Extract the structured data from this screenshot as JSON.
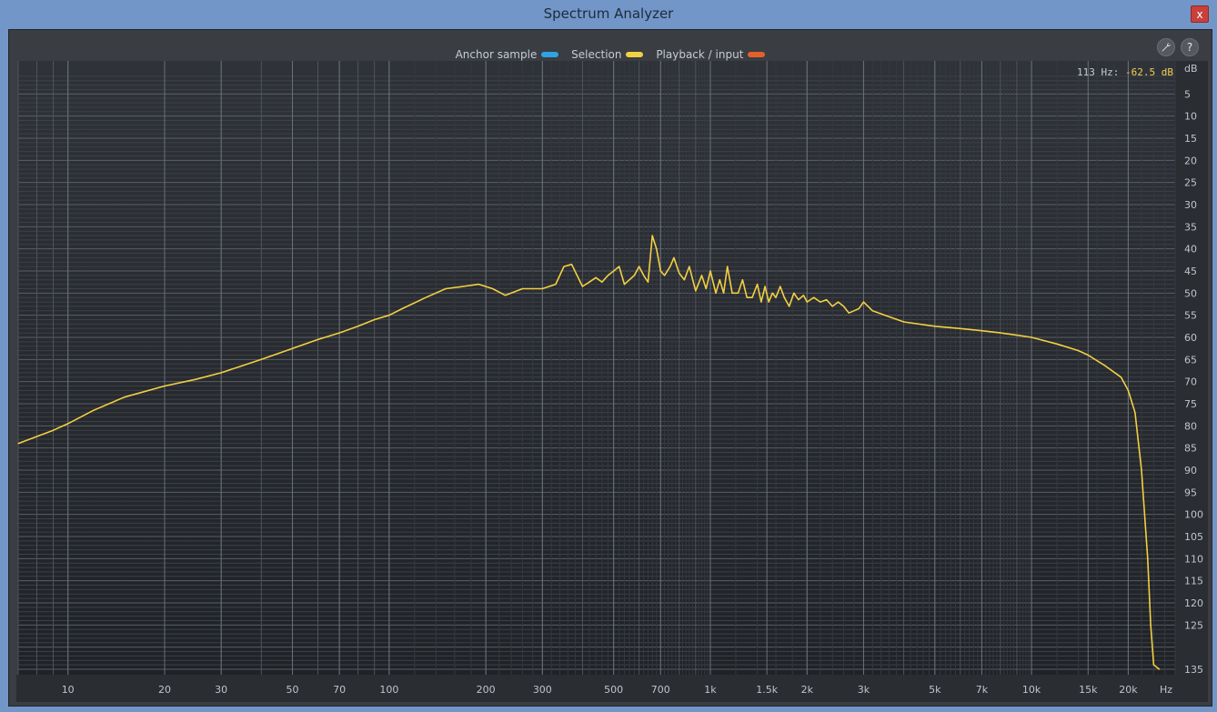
{
  "window": {
    "title": "Spectrum Analyzer",
    "close_label": "x"
  },
  "legend": [
    {
      "label": "Anchor sample",
      "color": "#2fa3e6"
    },
    {
      "label": "Selection",
      "color": "#f3cf42"
    },
    {
      "label": "Playback / input",
      "color": "#e4602a"
    }
  ],
  "toolbar": {
    "settings_icon": "wrench-icon",
    "help_label": "?"
  },
  "readout": {
    "freq": "113 Hz:",
    "value": "-62.5 dB"
  },
  "chart_data": {
    "type": "line",
    "title": "",
    "xlabel": "Hz",
    "ylabel": "dB",
    "xscale": "log",
    "xlim": [
      7,
      28000
    ],
    "ylim": [
      0,
      135
    ],
    "x_ticks": [
      {
        "v": 10,
        "label": "10"
      },
      {
        "v": 20,
        "label": "20"
      },
      {
        "v": 30,
        "label": "30"
      },
      {
        "v": 50,
        "label": "50"
      },
      {
        "v": 70,
        "label": "70"
      },
      {
        "v": 100,
        "label": "100"
      },
      {
        "v": 200,
        "label": "200"
      },
      {
        "v": 300,
        "label": "300"
      },
      {
        "v": 500,
        "label": "500"
      },
      {
        "v": 700,
        "label": "700"
      },
      {
        "v": 1000,
        "label": "1k"
      },
      {
        "v": 1500,
        "label": "1.5k"
      },
      {
        "v": 2000,
        "label": "2k"
      },
      {
        "v": 3000,
        "label": "3k"
      },
      {
        "v": 5000,
        "label": "5k"
      },
      {
        "v": 7000,
        "label": "7k"
      },
      {
        "v": 10000,
        "label": "10k"
      },
      {
        "v": 15000,
        "label": "15k"
      },
      {
        "v": 20000,
        "label": "20k"
      }
    ],
    "x_unit_label": "Hz",
    "y_unit_label": "dB",
    "y_ticks": [
      {
        "v": 5,
        "label": "5"
      },
      {
        "v": 10,
        "label": "10"
      },
      {
        "v": 15,
        "label": "15"
      },
      {
        "v": 20,
        "label": "20"
      },
      {
        "v": 25,
        "label": "25"
      },
      {
        "v": 30,
        "label": "30"
      },
      {
        "v": 35,
        "label": "35"
      },
      {
        "v": 40,
        "label": "40"
      },
      {
        "v": 45,
        "label": "45"
      },
      {
        "v": 50,
        "label": "50"
      },
      {
        "v": 55,
        "label": "55"
      },
      {
        "v": 60,
        "label": "60"
      },
      {
        "v": 65,
        "label": "65"
      },
      {
        "v": 70,
        "label": "70"
      },
      {
        "v": 75,
        "label": "75"
      },
      {
        "v": 80,
        "label": "80"
      },
      {
        "v": 85,
        "label": "85"
      },
      {
        "v": 90,
        "label": "90"
      },
      {
        "v": 95,
        "label": "95"
      },
      {
        "v": 100,
        "label": "100"
      },
      {
        "v": 105,
        "label": "105"
      },
      {
        "v": 110,
        "label": "110"
      },
      {
        "v": 115,
        "label": "115"
      },
      {
        "v": 120,
        "label": "120"
      },
      {
        "v": 125,
        "label": "125"
      },
      {
        "v": 135,
        "label": "135"
      }
    ],
    "series": [
      {
        "name": "Selection",
        "color": "#f3cf42",
        "points": [
          [
            7,
            84
          ],
          [
            9,
            81
          ],
          [
            10,
            79.5
          ],
          [
            12,
            76.5
          ],
          [
            15,
            73.5
          ],
          [
            20,
            71
          ],
          [
            25,
            69.5
          ],
          [
            30,
            68
          ],
          [
            40,
            65
          ],
          [
            50,
            62.5
          ],
          [
            60,
            60.5
          ],
          [
            70,
            59
          ],
          [
            80,
            57.5
          ],
          [
            90,
            56
          ],
          [
            100,
            55
          ],
          [
            110,
            53.5
          ],
          [
            130,
            51
          ],
          [
            150,
            49
          ],
          [
            170,
            48.5
          ],
          [
            190,
            48
          ],
          [
            210,
            49
          ],
          [
            230,
            50.5
          ],
          [
            260,
            49
          ],
          [
            280,
            49
          ],
          [
            300,
            49
          ],
          [
            330,
            48
          ],
          [
            350,
            44
          ],
          [
            370,
            43.5
          ],
          [
            400,
            48.5
          ],
          [
            420,
            47.5
          ],
          [
            440,
            46.5
          ],
          [
            460,
            47.5
          ],
          [
            480,
            46
          ],
          [
            500,
            45
          ],
          [
            520,
            44
          ],
          [
            540,
            48
          ],
          [
            560,
            47
          ],
          [
            580,
            46
          ],
          [
            600,
            44
          ],
          [
            620,
            46
          ],
          [
            640,
            47.5
          ],
          [
            660,
            37
          ],
          [
            680,
            40
          ],
          [
            700,
            45
          ],
          [
            720,
            46
          ],
          [
            750,
            44
          ],
          [
            770,
            42
          ],
          [
            800,
            45.5
          ],
          [
            830,
            47
          ],
          [
            860,
            44
          ],
          [
            900,
            49.5
          ],
          [
            940,
            46
          ],
          [
            970,
            49
          ],
          [
            1000,
            45
          ],
          [
            1040,
            50
          ],
          [
            1070,
            47
          ],
          [
            1100,
            50
          ],
          [
            1130,
            44
          ],
          [
            1170,
            50
          ],
          [
            1220,
            50
          ],
          [
            1260,
            47
          ],
          [
            1300,
            51
          ],
          [
            1350,
            51
          ],
          [
            1400,
            48
          ],
          [
            1440,
            52
          ],
          [
            1480,
            48.5
          ],
          [
            1520,
            52
          ],
          [
            1560,
            50
          ],
          [
            1600,
            51
          ],
          [
            1650,
            48.5
          ],
          [
            1700,
            51
          ],
          [
            1760,
            53
          ],
          [
            1820,
            50
          ],
          [
            1880,
            51.5
          ],
          [
            1950,
            50.5
          ],
          [
            2000,
            52
          ],
          [
            2100,
            51
          ],
          [
            2200,
            52
          ],
          [
            2300,
            51.5
          ],
          [
            2400,
            53
          ],
          [
            2500,
            52
          ],
          [
            2600,
            53
          ],
          [
            2700,
            54.5
          ],
          [
            2800,
            54
          ],
          [
            2900,
            53.5
          ],
          [
            3000,
            52
          ],
          [
            3200,
            54
          ],
          [
            3500,
            55
          ],
          [
            4000,
            56.5
          ],
          [
            5000,
            57.5
          ],
          [
            6000,
            58
          ],
          [
            7000,
            58.5
          ],
          [
            8000,
            59
          ],
          [
            9000,
            59.5
          ],
          [
            10000,
            60
          ],
          [
            12000,
            61.5
          ],
          [
            14000,
            63
          ],
          [
            15000,
            64
          ],
          [
            17000,
            66.5
          ],
          [
            19000,
            69
          ],
          [
            20000,
            72
          ],
          [
            21000,
            77
          ],
          [
            22000,
            90
          ],
          [
            23000,
            110
          ],
          [
            23500,
            125
          ],
          [
            24000,
            134
          ],
          [
            25000,
            135
          ]
        ]
      }
    ]
  }
}
